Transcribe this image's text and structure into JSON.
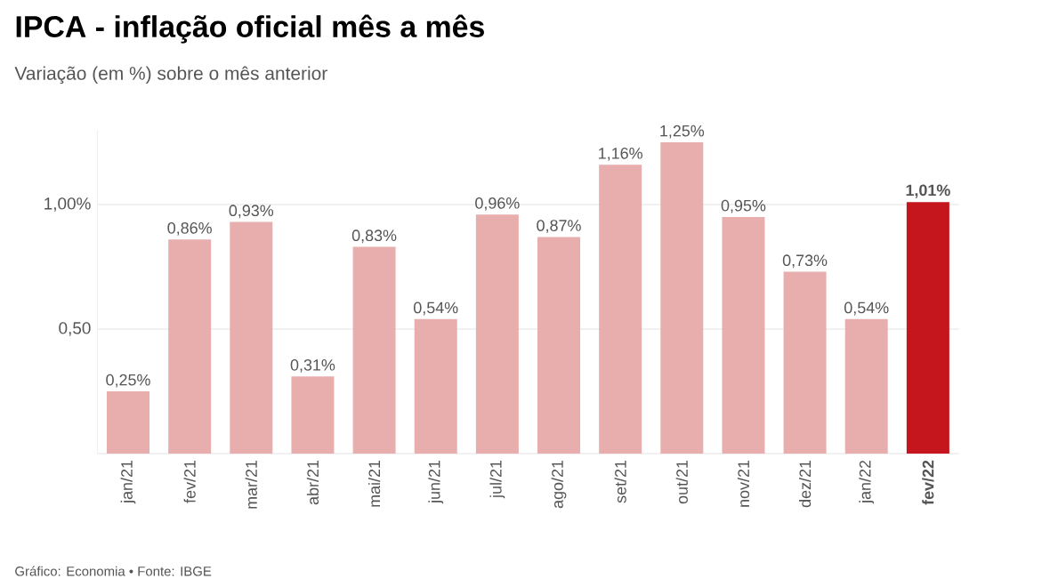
{
  "chart_data": {
    "type": "bar",
    "title": "IPCA - inflação oficial mês a mês",
    "subtitle": "Variação (em %) sobre o mês anterior",
    "categories": [
      "jan/21",
      "fev/21",
      "mar/21",
      "abr/21",
      "mai/21",
      "jun/21",
      "jul/21",
      "ago/21",
      "set/21",
      "out/21",
      "nov/21",
      "dez/21",
      "jan/22",
      "**fev/22**"
    ],
    "values": [
      0.25,
      0.86,
      0.93,
      0.31,
      0.83,
      0.54,
      0.96,
      0.87,
      1.16,
      1.25,
      0.95,
      0.73,
      0.54,
      1.01
    ],
    "value_labels": [
      "0,25%",
      "0,86%",
      "0,93%",
      "0,31%",
      "0,83%",
      "0,54%",
      "0,96%",
      "0,87%",
      "1,16%",
      "1,25%",
      "0,95%",
      "0,73%",
      "0,54%",
      "**1,01%**"
    ],
    "colors": [
      "#e8aeae",
      "#e8aeae",
      "#e8aeae",
      "#e8aeae",
      "#e8aeae",
      "#e8aeae",
      "#e8aeae",
      "#e8aeae",
      "#e8aeae",
      "#e8aeae",
      "#e8aeae",
      "#e8aeae",
      "#e8aeae",
      "#c4161c"
    ],
    "ylim": [
      0,
      1.3
    ],
    "yticks": [
      {
        "value": 0.5,
        "label": "0,50"
      },
      {
        "value": 1.0,
        "label": "1,00%"
      }
    ],
    "grid": "y",
    "annotations": [
      "Gráfico: Economia • Fonte: IBGE"
    ]
  }
}
